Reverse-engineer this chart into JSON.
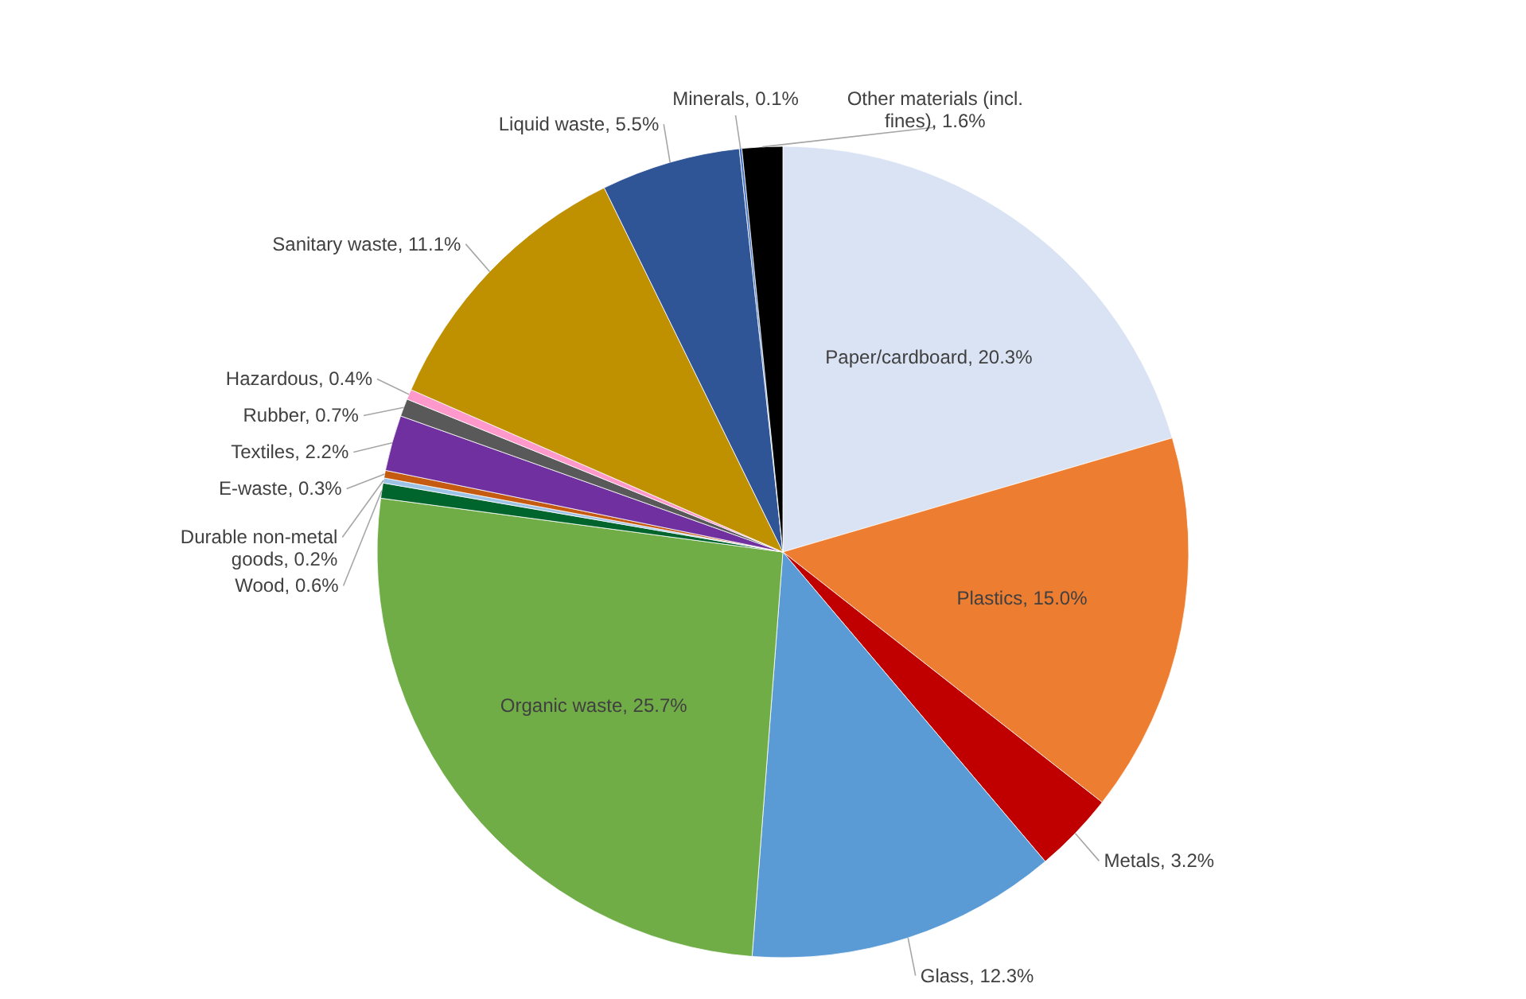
{
  "chart_data": {
    "type": "pie",
    "categories": [
      "Paper/cardboard",
      "Plastics",
      "Metals",
      "Glass",
      "Organic waste",
      "Wood",
      "Durable non-metal goods",
      "E-waste",
      "Textiles",
      "Rubber",
      "Hazardous",
      "Sanitary waste",
      "Liquid waste",
      "Minerals",
      "Other materials (incl. fines)"
    ],
    "values": [
      20.3,
      15.0,
      3.2,
      12.3,
      25.7,
      0.6,
      0.2,
      0.3,
      2.2,
      0.7,
      0.4,
      11.1,
      5.5,
      0.1,
      1.6
    ],
    "value_labels": [
      "20.3%",
      "15.0%",
      "3.2%",
      "12.3%",
      "25.7%",
      "0.6%",
      "0.2%",
      "0.3%",
      "2.2%",
      "0.7%",
      "0.4%",
      "11.1%",
      "5.5%",
      "0.1%",
      "1.6%"
    ],
    "colors": [
      "#dae3f3",
      "#ed7d31",
      "#c00000",
      "#5b9bd5",
      "#70ad47",
      "#00642d",
      "#9dc3e6",
      "#c55a11",
      "#7030a0",
      "#595959",
      "#ff99cc",
      "#bf9000",
      "#2f5597",
      "#4472c4",
      "#000000"
    ],
    "legend": false
  }
}
